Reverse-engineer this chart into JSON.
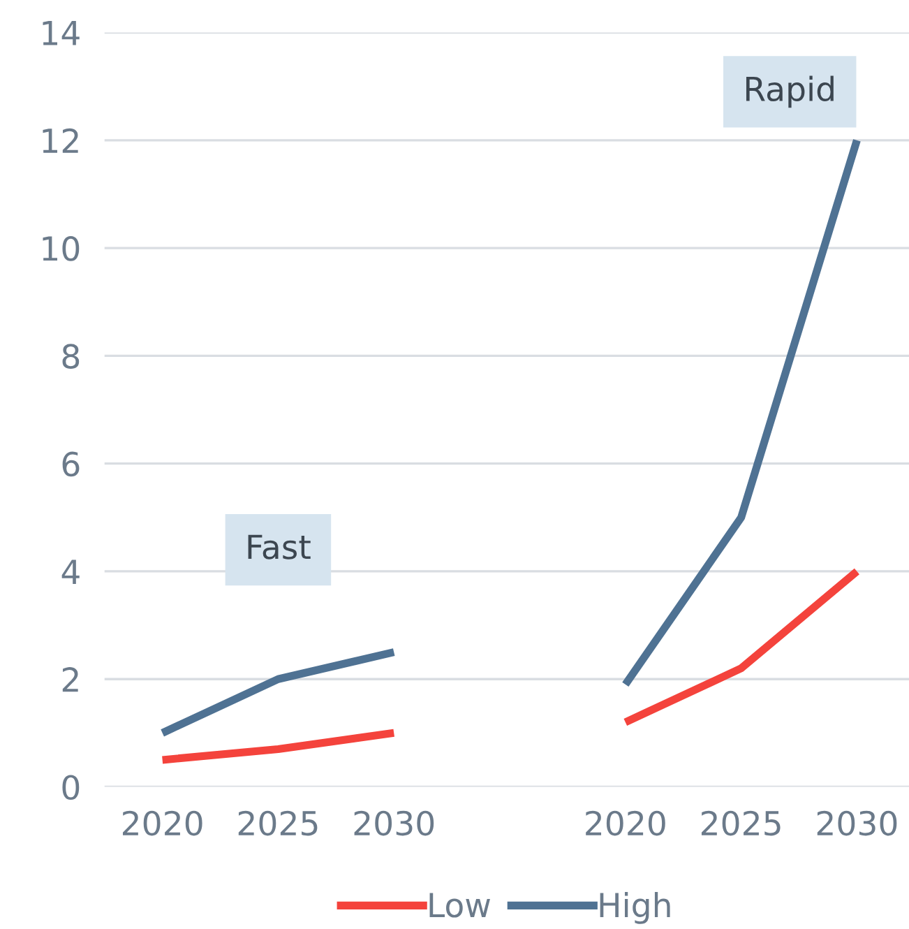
{
  "chart_data": {
    "type": "line",
    "categories": [
      "2020",
      "2025",
      "2030",
      null,
      "2020",
      "2025",
      "2030"
    ],
    "series": [
      {
        "name": "Low",
        "color": "#f4433c",
        "values": [
          0.5,
          0.7,
          1.0,
          null,
          1.2,
          2.2,
          4.0
        ]
      },
      {
        "name": "High",
        "color": "#4f7293",
        "values": [
          1.0,
          2.0,
          2.5,
          null,
          1.9,
          5.0,
          12.0
        ]
      }
    ],
    "ylim": [
      0,
      14
    ],
    "yticks": [
      0,
      2,
      4,
      6,
      8,
      10,
      12,
      14
    ],
    "grid": "y",
    "legend": "bottom",
    "marker": "none",
    "line_style": "solid",
    "annotations": [
      "Fast",
      "Rapid"
    ]
  }
}
